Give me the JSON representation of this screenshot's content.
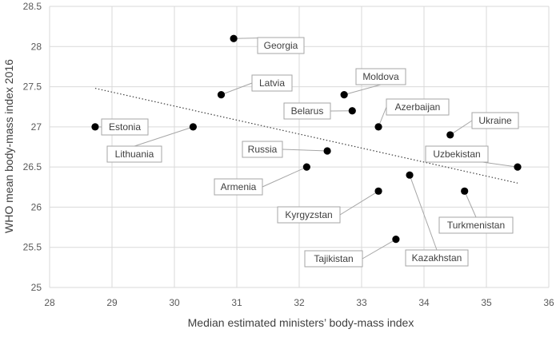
{
  "chart_data": {
    "type": "scatter",
    "xlabel": "Median estimated ministers’ body-mass index",
    "ylabel": "WHO mean body-mass index 2016",
    "xlim": [
      28,
      36
    ],
    "ylim": [
      25,
      28.5
    ],
    "x_ticks": [
      "28",
      "29",
      "30",
      "31",
      "32",
      "33",
      "34",
      "35",
      "36"
    ],
    "y_ticks": [
      "25",
      "25.5",
      "26",
      "26.5",
      "27",
      "27.5",
      "28",
      "28.5"
    ],
    "grid": true,
    "points": [
      {
        "label": "Georgia",
        "x": 30.95,
        "y": 28.1
      },
      {
        "label": "Latvia",
        "x": 30.75,
        "y": 27.4
      },
      {
        "label": "Moldova",
        "x": 32.72,
        "y": 27.4
      },
      {
        "label": "Belarus",
        "x": 32.85,
        "y": 27.2
      },
      {
        "label": "Azerbaijan",
        "x": 33.27,
        "y": 27.0
      },
      {
        "label": "Estonia",
        "x": 28.73,
        "y": 27.0
      },
      {
        "label": "Lithuania",
        "x": 30.3,
        "y": 27.0
      },
      {
        "label": "Ukraine",
        "x": 34.42,
        "y": 26.9
      },
      {
        "label": "Russia",
        "x": 32.45,
        "y": 26.7
      },
      {
        "label": "Uzbekistan",
        "x": 35.5,
        "y": 26.5
      },
      {
        "label": "Armenia",
        "x": 32.12,
        "y": 26.5
      },
      {
        "label": "Kazakhstan",
        "x": 33.77,
        "y": 26.4
      },
      {
        "label": "Kyrgyzstan",
        "x": 33.27,
        "y": 26.2
      },
      {
        "label": "Turkmenistan",
        "x": 34.65,
        "y": 26.2
      },
      {
        "label": "Tajikistan",
        "x": 33.55,
        "y": 25.6
      }
    ],
    "trendline": {
      "style": "dotted",
      "color": "#404040",
      "points": [
        [
          28.73,
          27.48
        ],
        [
          35.5,
          26.3
        ]
      ]
    },
    "marker_color": "#000000"
  }
}
